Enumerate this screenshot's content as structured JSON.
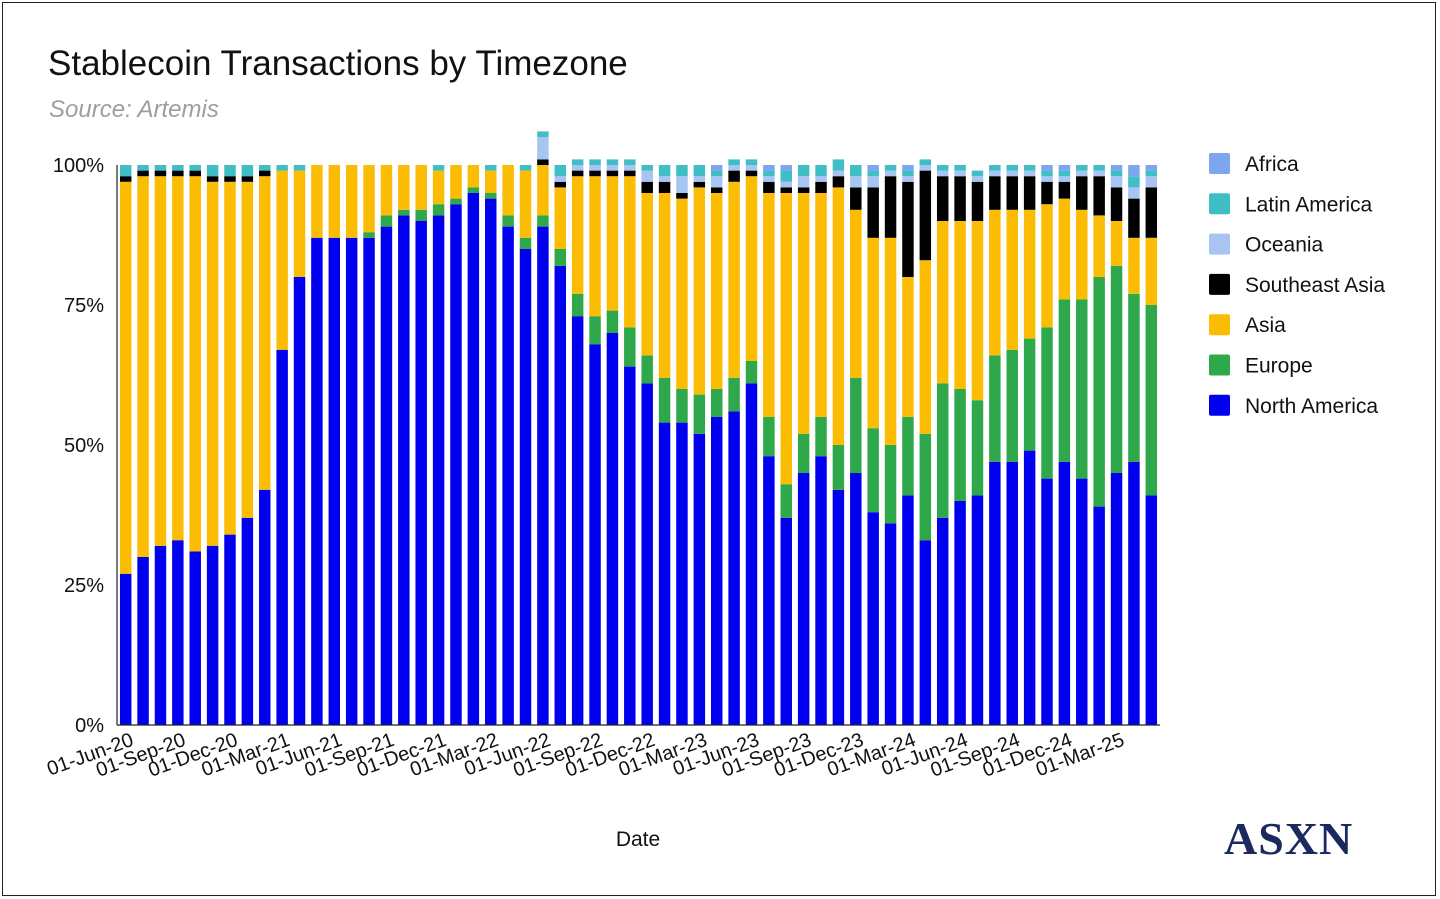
{
  "header": {
    "title": "Stablecoin Transactions by Timezone",
    "subtitle": "Source: Artemis"
  },
  "brand": {
    "text": "ASXN"
  },
  "chart_data": {
    "type": "bar",
    "stacked": true,
    "title": "Stablecoin Transactions by Timezone",
    "subtitle": "Source: Artemis",
    "xlabel": "Date",
    "ylabel": "",
    "ylim": [
      0,
      100
    ],
    "yticks": [
      0,
      25,
      50,
      75,
      100
    ],
    "ytick_labels": [
      "0%",
      "25%",
      "50%",
      "75%",
      "100%"
    ],
    "xtick_labels": [
      "01-Jun-20",
      "01-Sep-20",
      "01-Dec-20",
      "01-Mar-21",
      "01-Jun-21",
      "01-Sep-21",
      "01-Dec-21",
      "01-Mar-22",
      "01-Jun-22",
      "01-Sep-22",
      "01-Dec-22",
      "01-Mar-23",
      "01-Jun-23",
      "01-Sep-23",
      "01-Dec-23",
      "01-Mar-24",
      "01-Jun-24",
      "01-Sep-24",
      "01-Dec-24",
      "01-Mar-25"
    ],
    "xtick_every": 3,
    "legend_position": "right",
    "legend": [
      {
        "name": "Africa",
        "color": "#7ea6f0"
      },
      {
        "name": "Latin America",
        "color": "#3fbfc5"
      },
      {
        "name": "Oceania",
        "color": "#a8c4f2"
      },
      {
        "name": "Southeast Asia",
        "color": "#000000"
      },
      {
        "name": "Asia",
        "color": "#fbbc04"
      },
      {
        "name": "Europe",
        "color": "#2ea84a"
      },
      {
        "name": "North America",
        "color": "#0000ee"
      }
    ],
    "stack_order": [
      "North America",
      "Europe",
      "Asia",
      "Southeast Asia",
      "Oceania",
      "Latin America",
      "Africa"
    ],
    "categories": [
      "Jun-20",
      "Jul-20",
      "Aug-20",
      "Sep-20",
      "Oct-20",
      "Nov-20",
      "Dec-20",
      "Jan-21",
      "Feb-21",
      "Mar-21",
      "Apr-21",
      "May-21",
      "Jun-21",
      "Jul-21",
      "Aug-21",
      "Sep-21",
      "Oct-21",
      "Nov-21",
      "Dec-21",
      "Jan-22",
      "Feb-22",
      "Mar-22",
      "Apr-22",
      "May-22",
      "Jun-22",
      "Jul-22",
      "Aug-22",
      "Sep-22",
      "Oct-22",
      "Nov-22",
      "Dec-22",
      "Jan-23",
      "Feb-23",
      "Mar-23",
      "Apr-23",
      "May-23",
      "Jun-23",
      "Jul-23",
      "Aug-23",
      "Sep-23",
      "Oct-23",
      "Nov-23",
      "Dec-23",
      "Jan-24",
      "Feb-24",
      "Mar-24",
      "Apr-24",
      "May-24",
      "Jun-24",
      "Jul-24",
      "Aug-24",
      "Sep-24",
      "Oct-24",
      "Nov-24",
      "Dec-24",
      "Jan-25",
      "Feb-25",
      "Mar-25",
      "Apr-25",
      "May-25"
    ],
    "series": [
      {
        "name": "North America",
        "values": [
          27,
          30,
          32,
          33,
          31,
          32,
          34,
          37,
          42,
          67,
          80,
          87,
          87,
          87,
          87,
          89,
          91,
          90,
          91,
          93,
          95,
          94,
          89,
          85,
          89,
          82,
          73,
          68,
          70,
          64,
          61,
          54,
          54,
          52,
          55,
          56,
          61,
          48,
          37,
          45,
          48,
          42,
          45,
          38,
          36,
          41,
          33,
          37,
          40,
          41,
          47,
          47,
          49,
          44,
          47,
          44,
          39,
          45,
          47,
          41
        ]
      },
      {
        "name": "Europe",
        "values": [
          0,
          0,
          0,
          0,
          0,
          0,
          0,
          0,
          0,
          0,
          0,
          0,
          0,
          0,
          1,
          2,
          1,
          2,
          2,
          1,
          1,
          1,
          2,
          2,
          2,
          3,
          4,
          5,
          4,
          7,
          5,
          8,
          6,
          7,
          5,
          6,
          4,
          7,
          6,
          7,
          7,
          8,
          17,
          15,
          14,
          14,
          19,
          24,
          20,
          17,
          19,
          20,
          20,
          27,
          29,
          32,
          41,
          37,
          30,
          34
        ]
      },
      {
        "name": "Asia",
        "values": [
          70,
          68,
          66,
          65,
          67,
          65,
          63,
          60,
          56,
          32,
          19,
          13,
          13,
          13,
          12,
          9,
          8,
          8,
          6,
          6,
          4,
          4,
          9,
          12,
          9,
          11,
          21,
          25,
          24,
          27,
          29,
          33,
          34,
          37,
          35,
          35,
          33,
          40,
          52,
          43,
          40,
          46,
          30,
          34,
          37,
          25,
          31,
          29,
          30,
          32,
          26,
          25,
          23,
          22,
          18,
          16,
          11,
          8,
          10,
          12
        ]
      },
      {
        "name": "Southeast Asia",
        "values": [
          1,
          1,
          1,
          1,
          1,
          1,
          1,
          1,
          1,
          0,
          0,
          0,
          0,
          0,
          0,
          0,
          0,
          0,
          0,
          0,
          0,
          0,
          0,
          0,
          1,
          1,
          1,
          1,
          1,
          1,
          2,
          2,
          1,
          1,
          1,
          2,
          1,
          2,
          1,
          1,
          2,
          2,
          4,
          9,
          11,
          17,
          16,
          8,
          8,
          7,
          6,
          6,
          6,
          4,
          3,
          6,
          7,
          6,
          7,
          9
        ]
      },
      {
        "name": "Oceania",
        "values": [
          0,
          0,
          0,
          0,
          0,
          0,
          0,
          0,
          0,
          0,
          0,
          0,
          0,
          0,
          0,
          0,
          0,
          0,
          0,
          0,
          0,
          0,
          0,
          0,
          4,
          1,
          1,
          1,
          1,
          1,
          2,
          1,
          3,
          1,
          2,
          1,
          1,
          1,
          1,
          2,
          1,
          1,
          2,
          2,
          1,
          1,
          1,
          1,
          1,
          1,
          1,
          1,
          1,
          1,
          1,
          1,
          1,
          2,
          2,
          2
        ]
      },
      {
        "name": "Latin America",
        "values": [
          2,
          1,
          1,
          1,
          1,
          2,
          2,
          2,
          1,
          1,
          1,
          0,
          0,
          0,
          0,
          0,
          0,
          0,
          1,
          0,
          0,
          1,
          0,
          1,
          1,
          2,
          1,
          1,
          1,
          1,
          1,
          2,
          2,
          2,
          1,
          1,
          1,
          1,
          2,
          2,
          2,
          2,
          2,
          1,
          1,
          1,
          1,
          1,
          1,
          1,
          1,
          1,
          1,
          1,
          1,
          1,
          1,
          1,
          2,
          1
        ]
      },
      {
        "name": "Africa",
        "values": [
          0,
          0,
          0,
          0,
          0,
          0,
          0,
          0,
          0,
          0,
          0,
          0,
          0,
          0,
          0,
          0,
          0,
          0,
          0,
          0,
          0,
          0,
          0,
          0,
          0,
          0,
          0,
          0,
          0,
          0,
          0,
          0,
          0,
          0,
          1,
          0,
          0,
          1,
          1,
          0,
          0,
          0,
          0,
          1,
          0,
          1,
          0,
          0,
          0,
          0,
          0,
          0,
          0,
          1,
          1,
          0,
          0,
          1,
          2,
          1
        ]
      }
    ]
  }
}
